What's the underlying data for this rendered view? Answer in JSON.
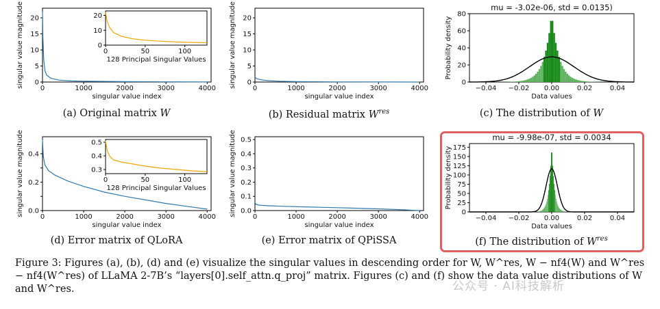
{
  "panels": [
    {
      "id": "a",
      "chart_data": {
        "type": "line",
        "xlabel": "singular value index",
        "ylabel": "singular value magnitude",
        "xlim": [
          0,
          4096
        ],
        "ylim": [
          0,
          23
        ],
        "xticks": [
          0,
          1000,
          2000,
          3000,
          4000
        ],
        "yticks": [
          0,
          5,
          10,
          15,
          20
        ],
        "series": [
          {
            "name": "singular values",
            "x": [
              0,
              10,
              30,
              60,
              100,
              200,
              400,
              700,
              1000,
              2000,
              3000,
              4000
            ],
            "y": [
              22,
              14,
              7,
              3.5,
              2.2,
              1.2,
              0.6,
              0.35,
              0.25,
              0.12,
              0.06,
              0.02
            ]
          }
        ],
        "inset": {
          "xlabel": "128 Principal Singular Values",
          "xlim": [
            0,
            128
          ],
          "ylim": [
            0,
            23
          ],
          "xticks": [
            0,
            50,
            100
          ],
          "yticks": [
            0,
            10,
            20
          ],
          "x": [
            0,
            2,
            5,
            10,
            20,
            35,
            50,
            70,
            90,
            110,
            128
          ],
          "y": [
            22,
            16,
            12,
            8.5,
            6,
            4.2,
            3.3,
            2.6,
            2.1,
            1.8,
            1.6
          ]
        }
      },
      "caption_prefix": "(a) Original matrix ",
      "caption_var": "W",
      "caption_sup": ""
    },
    {
      "id": "b",
      "chart_data": {
        "type": "line",
        "xlabel": "singular value index",
        "ylabel": "singular value magnitude",
        "xlim": [
          0,
          4096
        ],
        "ylim": [
          0,
          23
        ],
        "xticks": [
          0,
          1000,
          2000,
          3000,
          4000
        ],
        "yticks": [
          0,
          5,
          10,
          15,
          20
        ],
        "series": [
          {
            "name": "singular values",
            "x": [
              0,
              50,
              150,
              300,
              600,
              1000,
              2000,
              3000,
              4000
            ],
            "y": [
              1.5,
              1.0,
              0.7,
              0.45,
              0.25,
              0.12,
              0.05,
              0.02,
              0.0
            ]
          }
        ]
      },
      "caption_prefix": "(b) Residual matrix ",
      "caption_var": "W",
      "caption_sup": "res"
    },
    {
      "id": "c",
      "chart_data": {
        "type": "bar",
        "title": "mu = -3.02e-06, std = 0.0135)",
        "xlabel": "Data values",
        "ylabel": "Probability density",
        "xlim": [
          -0.05,
          0.05
        ],
        "ylim": [
          0,
          80
        ],
        "xticks": [
          -0.04,
          -0.02,
          0.0,
          0.02,
          0.04
        ],
        "xtick_labels": [
          "−0.04",
          "−0.02",
          "0.00",
          "0.02",
          "0.04"
        ],
        "yticks": [
          0,
          20,
          40,
          60,
          80
        ],
        "hist_shape": "peaked",
        "hist_scale": 0.0045,
        "hist_peak": 80,
        "hist_range": [
          -0.03,
          0.03
        ],
        "fit": {
          "mu": -3.02e-06,
          "std": 0.0135,
          "peak": 29.5
        }
      },
      "caption_prefix": "(c) The distribution of ",
      "caption_var": "W",
      "caption_sup": ""
    },
    {
      "id": "d",
      "chart_data": {
        "type": "line",
        "xlabel": "singular value index",
        "ylabel": "singular value magnitude",
        "xlim": [
          0,
          4096
        ],
        "ylim": [
          0,
          0.52
        ],
        "xticks": [
          0,
          1000,
          2000,
          3000,
          4000
        ],
        "yticks": [
          0.0,
          0.1,
          0.2,
          0.3,
          0.4
        ],
        "ytick_labels": [
          "0.0",
          "0.2",
          "0.4"
        ],
        "series": [
          {
            "name": "singular values",
            "x": [
              0,
              20,
              60,
              150,
              300,
              600,
              1000,
              1500,
              2000,
              2500,
              3000,
              3500,
              4000
            ],
            "y": [
              0.5,
              0.38,
              0.32,
              0.28,
              0.25,
              0.21,
              0.17,
              0.13,
              0.1,
              0.075,
              0.05,
              0.03,
              0.01
            ]
          }
        ],
        "inset": {
          "xlabel": "128 Principal Singular Values",
          "xlim": [
            0,
            128
          ],
          "ylim": [
            0.27,
            0.52
          ],
          "xticks": [
            0,
            50,
            100
          ],
          "yticks": [
            0.3,
            0.4,
            0.5
          ],
          "x": [
            0,
            2,
            5,
            10,
            20,
            35,
            50,
            70,
            90,
            110,
            128
          ],
          "y": [
            0.51,
            0.44,
            0.4,
            0.37,
            0.355,
            0.34,
            0.325,
            0.31,
            0.3,
            0.29,
            0.285
          ]
        }
      },
      "caption_prefix": "(d) Error matrix of QLoRA",
      "caption_var": "",
      "caption_sup": ""
    },
    {
      "id": "e",
      "chart_data": {
        "type": "line",
        "xlabel": "singular value index",
        "ylabel": "singular value magnitude",
        "xlim": [
          0,
          4096
        ],
        "ylim": [
          0,
          0.52
        ],
        "xticks": [
          0,
          1000,
          2000,
          3000,
          4000
        ],
        "yticks": [
          0.0,
          0.1,
          0.2,
          0.3,
          0.4,
          0.5
        ],
        "series": [
          {
            "name": "singular values",
            "x": [
              0,
              20,
              100,
              300,
              700,
              1200,
              2000,
              3000,
              3600,
              4000
            ],
            "y": [
              0.06,
              0.045,
              0.038,
              0.034,
              0.03,
              0.026,
              0.02,
              0.012,
              0.006,
              0.0
            ]
          }
        ]
      },
      "caption_prefix": "(e) Error matrix of QPiSSA",
      "caption_var": "",
      "caption_sup": ""
    },
    {
      "id": "f",
      "chart_data": {
        "type": "bar",
        "title": "mu = -9.98e-07, std = 0.0034",
        "xlabel": "Data values",
        "ylabel": "Probability density",
        "xlim": [
          -0.05,
          0.05
        ],
        "ylim": [
          0,
          185
        ],
        "xticks": [
          -0.04,
          -0.02,
          0.0,
          0.02,
          0.04
        ],
        "xtick_labels": [
          "−0.04",
          "−0.02",
          "0.00",
          "0.02",
          "0.04"
        ],
        "yticks": [
          0,
          25,
          50,
          75,
          100,
          125,
          150,
          175
        ],
        "hist_shape": "peaked",
        "hist_scale": 0.0016,
        "hist_peak": 182,
        "hist_range": [
          -0.012,
          0.012
        ],
        "fit": {
          "mu": -9.98e-07,
          "std": 0.0034,
          "peak": 117
        }
      },
      "caption_prefix": "(f) The distribution of ",
      "caption_var": "W",
      "caption_sup": "res"
    }
  ],
  "figure_caption": "Figure 3: Figures (a), (b), (d) and (e) visualize the singular values in descending order for W, W^res, W − nf4(W) and W^res − nf4(W^res) of LLaMA 2-7B’s “layers[0].self_attn.q_proj” matrix. Figures (c) and (f) show the data value distributions of W and W^res.",
  "watermark": "公众号 · AI科技解析",
  "colors": {
    "line": "#2e7bb0",
    "inset": "#f0a500",
    "hist_fill": "#5fb25f",
    "hist_dark": "#1a8a1a",
    "fit": "#000000",
    "highlight": "#e06060"
  }
}
